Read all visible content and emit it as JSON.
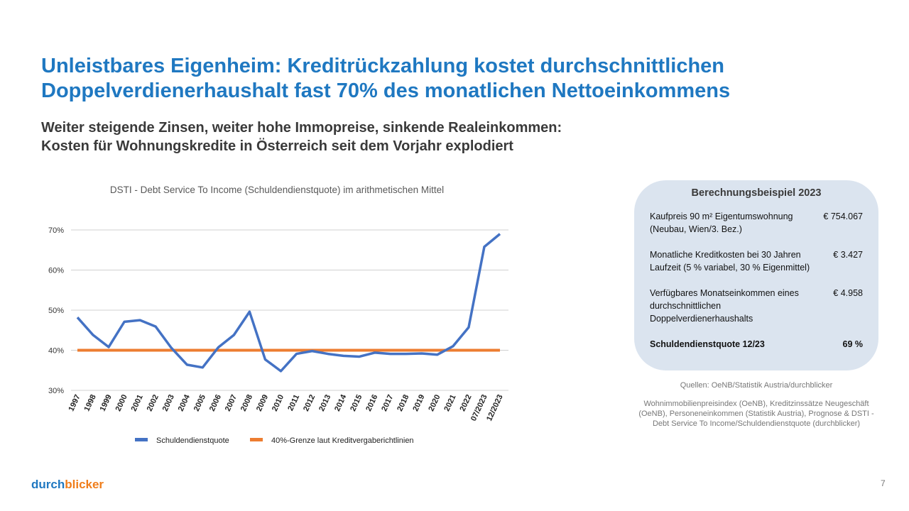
{
  "title": "Unleistbares Eigenheim: Kreditrückzahlung kostet durchschnittlichen Doppelverdienerhaushalt fast 70% des monatlichen Nettoeinkommens",
  "subtitle_line1": "Weiter steigende Zinsen, weiter hohe Immopreise, sinkende Realeinkommen:",
  "subtitle_line2": "Kosten für Wohnungskredite in Österreich seit dem Vorjahr explodiert",
  "chart_data": {
    "type": "line",
    "title": "DSTI - Debt Service To Income (Schuldendienstquote) im arithmetischen Mittel",
    "categories": [
      "1997",
      "1998",
      "1999",
      "2000",
      "2001",
      "2002",
      "2003",
      "2004",
      "2005",
      "2006",
      "2007",
      "2008",
      "2009",
      "2010",
      "2011",
      "2012",
      "2013",
      "2014",
      "2015",
      "2016",
      "2017",
      "2018",
      "2019",
      "2020",
      "2021",
      "2022",
      "07/2023",
      "12/2023"
    ],
    "series": [
      {
        "name": "Schuldendienstquote",
        "color": "#4472c4",
        "values": [
          48.2,
          43.8,
          40.8,
          47.1,
          47.5,
          45.9,
          40.6,
          36.4,
          35.7,
          40.7,
          43.8,
          49.6,
          37.7,
          34.8,
          39.1,
          39.8,
          39.1,
          38.6,
          38.4,
          39.4,
          39.1,
          39.1,
          39.2,
          38.9,
          41.0,
          45.7,
          65.8,
          69.0
        ]
      },
      {
        "name": "40%-Grenze laut Kreditvergaberichtlinien",
        "color": "#ed7d31",
        "values": [
          40,
          40,
          40,
          40,
          40,
          40,
          40,
          40,
          40,
          40,
          40,
          40,
          40,
          40,
          40,
          40,
          40,
          40,
          40,
          40,
          40,
          40,
          40,
          40,
          40,
          40,
          40,
          40
        ]
      }
    ],
    "yticks": [
      "30%",
      "40%",
      "50%",
      "60%",
      "70%"
    ],
    "ylim": [
      30,
      70
    ],
    "grid": true,
    "legend": "bottom"
  },
  "box": {
    "title": "Berechnungsbeispiel 2023",
    "rows": [
      {
        "label": "Kaufpreis 90 m² Eigentumswohnung (Neubau, Wien/3. Bez.)",
        "value": "€ 754.067"
      },
      {
        "label": "Monatliche Kreditkosten bei 30 Jahren Laufzeit (5 % variabel, 30 % Eigenmittel)",
        "value": "€ 3.427"
      },
      {
        "label": "Verfügbares Monatseinkommen eines durchschnittlichen Doppelverdienerhaushalts",
        "value": "€ 4.958"
      },
      {
        "label": "Schuldendienstquote 12/23",
        "value": "69 %"
      }
    ]
  },
  "sources": "Quellen: OeNB/Statistik Austria/durchblicker",
  "sources_detail": "Wohnimmobilienpreisindex (OeNB), Kreditzinssätze Neugeschäft (OeNB), Personeneinkommen (Statistik Austria), Prognose & DSTI - Debt Service To Income/Schuldendienstquote (durchblicker)",
  "logo_part1": "durch",
  "logo_part2": "blicker",
  "page_number": "7"
}
